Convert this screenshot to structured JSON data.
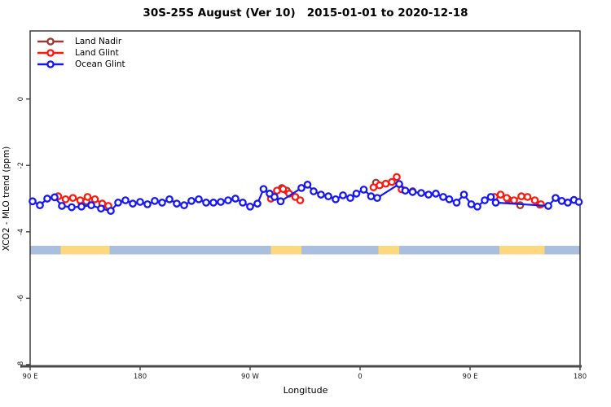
{
  "title": "30S-25S August (Ver 10)   2015-01-01 to 2020-12-18",
  "legend": {
    "items": [
      {
        "label": "Land Nadir",
        "color": "#9e3939"
      },
      {
        "label": "Land Glint",
        "color": "#fb1a10"
      },
      {
        "label": "Ocean Glint",
        "color": "#1717f2"
      }
    ]
  },
  "chart_data": {
    "type": "line",
    "title": "30S-25S August (Ver 10)   2015-01-01 to 2020-12-18",
    "xlabel": "Longitude",
    "ylabel": "XCO2 - MLO trend (ppm)",
    "x_axis": {
      "note": "x measured in degrees east of 90E, wrapping eastward",
      "range_deg": [
        0,
        450
      ],
      "ticks": [
        {
          "deg": 0,
          "label": "90 E"
        },
        {
          "deg": 90,
          "label": "180"
        },
        {
          "deg": 180,
          "label": "90 W"
        },
        {
          "deg": 270,
          "label": "0"
        },
        {
          "deg": 360,
          "label": "90 E"
        },
        {
          "deg": 450,
          "label": "180"
        }
      ]
    },
    "y_axis": {
      "range": [
        2.05,
        -8.05
      ],
      "ticks": [
        {
          "v": 0,
          "label": "0"
        },
        {
          "v": -2,
          "label": "-2"
        },
        {
          "v": -4,
          "label": "-4"
        },
        {
          "v": -6,
          "label": "-6"
        },
        {
          "v": -8,
          "label": "-8"
        }
      ]
    },
    "surface_band": {
      "y_top": -4.42,
      "y_bottom": -4.68,
      "ocean_color": "#a9bfdd",
      "land_color": "#fcd87e",
      "segments": [
        {
          "from": 0,
          "to": 25,
          "type": "ocean"
        },
        {
          "from": 25,
          "to": 65,
          "type": "land"
        },
        {
          "from": 65,
          "to": 197,
          "type": "ocean"
        },
        {
          "from": 197,
          "to": 222,
          "type": "land"
        },
        {
          "from": 222,
          "to": 285,
          "type": "ocean"
        },
        {
          "from": 285,
          "to": 302,
          "type": "land"
        },
        {
          "from": 302,
          "to": 384,
          "type": "ocean"
        },
        {
          "from": 384,
          "to": 421,
          "type": "land"
        },
        {
          "from": 421,
          "to": 450,
          "type": "ocean"
        }
      ]
    },
    "series": [
      {
        "name": "Land Nadir",
        "color": "#9e3939",
        "segments": [
          [
            [
              42,
              -3.12
            ],
            [
              46,
              -3.08
            ]
          ],
          [
            [
              206,
              -2.68
            ],
            [
              210,
              -2.76
            ]
          ],
          [
            [
              283,
              -2.52
            ]
          ],
          [
            [
              313,
              -2.78
            ]
          ],
          [
            [
              391,
              -3.02
            ]
          ],
          [
            [
              401,
              -3.2
            ]
          ],
          [
            [
              417,
              -3.18
            ]
          ]
        ]
      },
      {
        "name": "Land Glint",
        "color": "#fb1a10",
        "segments": [
          [
            [
              23,
              -2.93
            ],
            [
              29,
              -3.02
            ],
            [
              35,
              -2.98
            ],
            [
              41,
              -3.05
            ],
            [
              47,
              -2.95
            ],
            [
              53,
              -3.02
            ],
            [
              59,
              -3.15
            ],
            [
              64,
              -3.22
            ]
          ],
          [
            [
              197,
              -3.0
            ],
            [
              202,
              -2.76
            ],
            [
              207,
              -2.71
            ],
            [
              212,
              -2.85
            ],
            [
              217,
              -2.95
            ],
            [
              221,
              -3.05
            ]
          ],
          [
            [
              281,
              -2.66
            ],
            [
              286,
              -2.6
            ],
            [
              291,
              -2.55
            ],
            [
              296,
              -2.5
            ],
            [
              300,
              -2.35
            ],
            [
              304,
              -2.72
            ]
          ],
          [
            [
              380,
              -2.95
            ],
            [
              385,
              -2.88
            ],
            [
              390,
              -2.98
            ],
            [
              396,
              -3.05
            ],
            [
              402,
              -2.93
            ],
            [
              407,
              -2.95
            ],
            [
              413,
              -3.05
            ],
            [
              418,
              -3.17
            ]
          ]
        ]
      },
      {
        "name": "Ocean Glint",
        "color": "#1717f2",
        "segments": [
          [
            [
              2,
              -3.08
            ],
            [
              8,
              -3.2
            ],
            [
              14,
              -3.0
            ],
            [
              20,
              -2.96
            ],
            [
              26,
              -3.22
            ],
            [
              34,
              -3.26
            ],
            [
              42,
              -3.24
            ],
            [
              50,
              -3.2
            ],
            [
              58,
              -3.3
            ],
            [
              66,
              -3.37
            ],
            [
              72,
              -3.12
            ],
            [
              78,
              -3.05
            ],
            [
              84,
              -3.15
            ],
            [
              90,
              -3.1
            ],
            [
              96,
              -3.17
            ],
            [
              102,
              -3.07
            ],
            [
              108,
              -3.12
            ],
            [
              114,
              -3.02
            ],
            [
              120,
              -3.15
            ],
            [
              126,
              -3.2
            ],
            [
              132,
              -3.07
            ],
            [
              138,
              -3.02
            ],
            [
              144,
              -3.12
            ],
            [
              150,
              -3.12
            ],
            [
              156,
              -3.1
            ],
            [
              162,
              -3.05
            ],
            [
              168,
              -3.0
            ],
            [
              174,
              -3.12
            ],
            [
              180,
              -3.24
            ],
            [
              186,
              -3.15
            ],
            [
              191,
              -2.71
            ],
            [
              196,
              -2.85
            ],
            [
              200,
              -2.95
            ],
            [
              205,
              -3.08
            ],
            [
              222,
              -2.68
            ],
            [
              227,
              -2.58
            ],
            [
              232,
              -2.78
            ],
            [
              238,
              -2.88
            ],
            [
              244,
              -2.93
            ],
            [
              250,
              -3.02
            ],
            [
              256,
              -2.9
            ],
            [
              262,
              -2.98
            ],
            [
              267,
              -2.85
            ],
            [
              273,
              -2.73
            ],
            [
              279,
              -2.93
            ],
            [
              284,
              -2.98
            ],
            [
              302,
              -2.56
            ],
            [
              307,
              -2.76
            ],
            [
              313,
              -2.8
            ],
            [
              320,
              -2.83
            ],
            [
              326,
              -2.88
            ],
            [
              332,
              -2.85
            ],
            [
              338,
              -2.95
            ],
            [
              343,
              -3.02
            ],
            [
              349,
              -3.12
            ],
            [
              355,
              -2.88
            ],
            [
              361,
              -3.17
            ],
            [
              366,
              -3.24
            ],
            [
              372,
              -3.05
            ],
            [
              377,
              -2.95
            ],
            [
              381,
              -3.12
            ],
            [
              424,
              -3.22
            ],
            [
              430,
              -2.98
            ],
            [
              435,
              -3.07
            ],
            [
              440,
              -3.12
            ],
            [
              445,
              -3.04
            ],
            [
              449,
              -3.1
            ]
          ]
        ]
      }
    ],
    "style": {
      "plot_border_color": "#3d3d3d",
      "bottom_axis_color": "#4a4a4a",
      "tick_label_color": "#1a1a1a",
      "marker_fill": "#ffffff"
    }
  }
}
